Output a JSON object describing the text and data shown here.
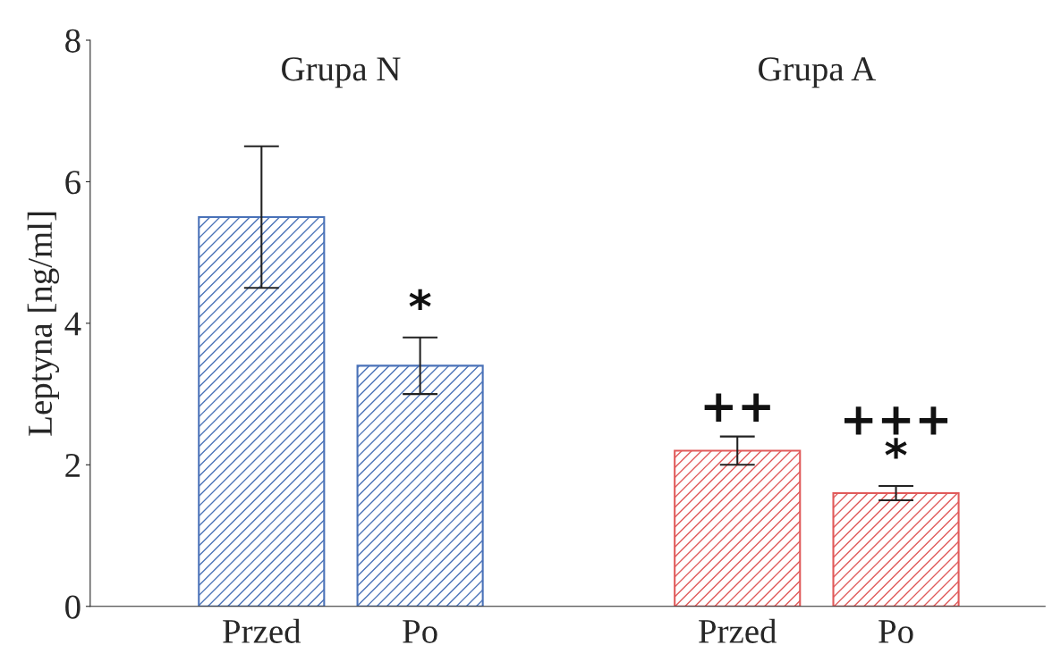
{
  "chart_data": {
    "type": "bar",
    "ylabel": "Leptyna [ng/ml]",
    "categories": [
      "Przed",
      "Po",
      null,
      "Przed",
      "Po"
    ],
    "values": [
      5.5,
      3.4,
      null,
      2.2,
      1.6
    ],
    "errors": [
      1.0,
      0.4,
      null,
      0.2,
      0.1
    ],
    "colors": [
      "#4a72b8",
      "#4a72b8",
      "#ffffff",
      "#e05a5a",
      "#e05a5a"
    ],
    "value_labels": [
      null,
      "*",
      null,
      "++",
      "+++\n*"
    ],
    "annotations": [
      "Grupa N",
      "Grupa A"
    ],
    "ylim": [
      0,
      8
    ],
    "yticks": [
      0,
      2,
      4,
      6,
      8
    ]
  }
}
